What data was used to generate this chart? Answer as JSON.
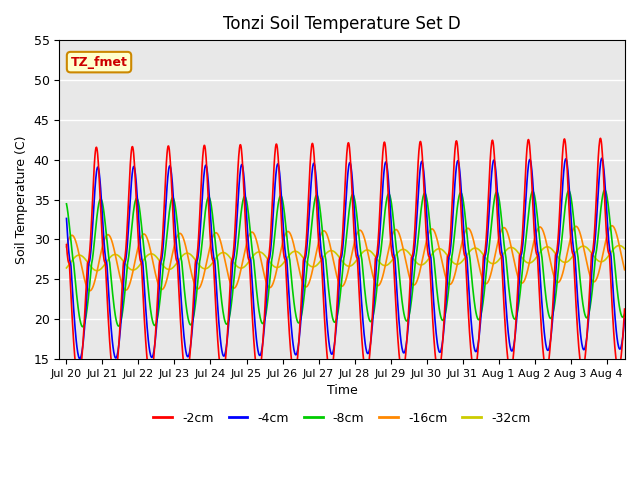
{
  "title": "Tonzi Soil Temperature Set D",
  "xlabel": "Time",
  "ylabel": "Soil Temperature (C)",
  "ylim": [
    15,
    55
  ],
  "annotation": "TZ_fmet",
  "series_labels": [
    "-2cm",
    "-4cm",
    "-8cm",
    "-16cm",
    "-32cm"
  ],
  "series_colors": [
    "#ff0000",
    "#0000ff",
    "#00cc00",
    "#ff8800",
    "#cccc00"
  ],
  "xtick_labels": [
    "Jul 20",
    "Jul 21",
    "Jul 22",
    "Jul 23",
    "Jul 24",
    "Jul 25",
    "Jul 26",
    "Jul 27",
    "Jul 28",
    "Jul 29",
    "Jul 30",
    "Jul 31",
    "Aug 1",
    "Aug 2",
    "Aug 3",
    "Aug 4"
  ],
  "bg_color": "#e8e8e8",
  "fig_bg": "#ffffff",
  "n_days": 15.5,
  "samples_per_day": 96,
  "base_temp": 27.0,
  "trend_per_day": 0.08,
  "amp_2cm": 14.5,
  "amp_4cm": 12.0,
  "amp_8cm": 8.0,
  "amp_16cm": 3.5,
  "amp_32cm": 1.0,
  "phase_peak_2cm": 0.58,
  "phase_peak_4cm": 0.62,
  "phase_peak_8cm": 0.7,
  "phase_peak_16cm": 0.9,
  "phase_peak_32cm": 1.1,
  "sharpen_2cm": 2.5,
  "sharpen_4cm": 2.0,
  "sharpen_8cm": 1.4,
  "sharpen_16cm": 1.0,
  "sharpen_32cm": 1.0,
  "gridcolor": "#ffffff",
  "linewidth": 1.2
}
